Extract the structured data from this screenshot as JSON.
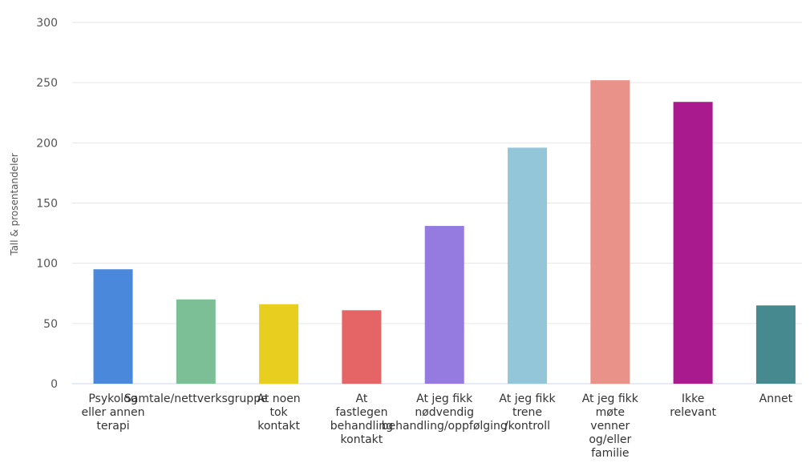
{
  "chart_data": {
    "type": "bar",
    "title": "",
    "xlabel": "",
    "ylabel": "Tall & prosentandeler",
    "ylim": [
      0,
      300
    ],
    "yticks": [
      0,
      50,
      100,
      150,
      200,
      250,
      300
    ],
    "grid": true,
    "legend": "none",
    "categories": [
      "Psykolog eller annen terapi",
      "Samtale/nettverksgruppe",
      "At noen tok kontakt",
      "At fastlegen behandling kontakt",
      "At jeg fikk nødvendig behandling/oppfølging",
      "At jeg fikk trene /kontroll",
      "At jeg fikk møte venner og/eller familie",
      "Ikke relevant",
      "Annet"
    ],
    "category_lines": [
      [
        "Psykolog",
        "eller annen",
        "terapi"
      ],
      [
        "Samtale/nettverksgruppe"
      ],
      [
        "At noen",
        "tok",
        "kontakt"
      ],
      [
        "At",
        "fastlegen",
        "behandling",
        "kontakt"
      ],
      [
        "At jeg fikk",
        "nødvendig",
        "behandling/oppfølging"
      ],
      [
        "At jeg fikk",
        "trene",
        "/kontroll"
      ],
      [
        "At jeg fikk",
        "møte",
        "venner",
        "og/eller",
        "familie"
      ],
      [
        "Ikke",
        "relevant"
      ],
      [
        "Annet"
      ]
    ],
    "values": [
      95,
      70,
      66,
      61,
      131,
      196,
      252,
      234,
      65
    ],
    "colors": [
      "#4a88db",
      "#7cbf96",
      "#e8cf1f",
      "#e56466",
      "#957be0",
      "#92c6d8",
      "#e8928a",
      "#aa1a8f",
      "#468a8f"
    ]
  }
}
